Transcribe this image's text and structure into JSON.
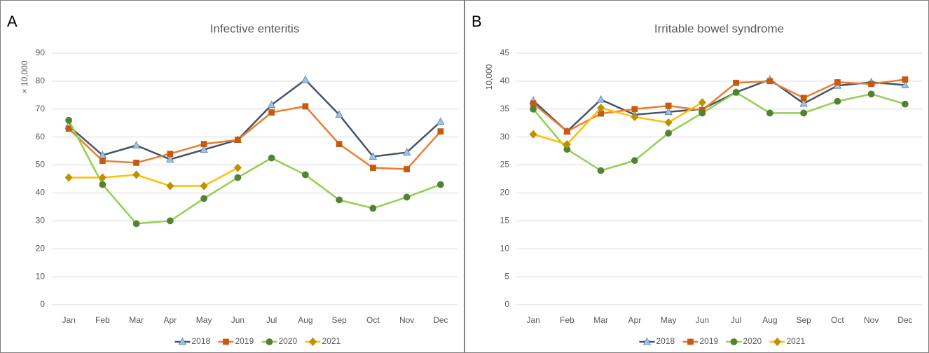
{
  "chart_data": [
    {
      "type": "line",
      "panel": "A",
      "title": "Infective enteritis",
      "y_label": "× 10,000",
      "categories": [
        "Jan",
        "Feb",
        "Mar",
        "Apr",
        "May",
        "Jun",
        "Jul",
        "Aug",
        "Sep",
        "Oct",
        "Nov",
        "Dec"
      ],
      "ylim": [
        0,
        90
      ],
      "yticks": [
        0,
        10,
        20,
        30,
        40,
        50,
        60,
        70,
        80,
        90
      ],
      "grid": true,
      "legend": "bottom",
      "series": [
        {
          "name": "2018",
          "color": "#44546a",
          "marker": "triangle",
          "marker_color": "#9dc3e6",
          "values": [
            64,
            53.5,
            57,
            52,
            55.5,
            59,
            71.5,
            80.5,
            68,
            53,
            54.5,
            65.5
          ]
        },
        {
          "name": "2019",
          "color": "#ed7d31",
          "marker": "square",
          "marker_color": "#c55a11",
          "values": [
            63,
            51.5,
            50.8,
            54,
            57.5,
            59,
            68.8,
            71,
            57.5,
            49,
            48.5,
            62
          ]
        },
        {
          "name": "2020",
          "color": "#92d050",
          "marker": "circle",
          "marker_color": "#548235",
          "values": [
            66,
            43,
            29,
            30,
            38,
            45.5,
            52.5,
            46.5,
            37.5,
            34.5,
            38.5,
            43
          ]
        },
        {
          "name": "2021",
          "color": "#ffc000",
          "marker": "diamond",
          "marker_color": "#bf9000",
          "values": [
            45.5,
            45.5,
            46.5,
            42.5,
            42.5,
            49,
            null,
            null,
            null,
            null,
            null,
            null
          ]
        }
      ]
    },
    {
      "type": "line",
      "panel": "B",
      "title": "Irritable bowel syndrome",
      "y_label": "10,000",
      "categories": [
        "Jan",
        "Feb",
        "Mar",
        "Apr",
        "May",
        "Jun",
        "Jul",
        "Aug",
        "Sep",
        "Oct",
        "Nov",
        "Dec"
      ],
      "ylim": [
        0,
        45
      ],
      "yticks": [
        0,
        5,
        10,
        15,
        20,
        25,
        30,
        35,
        40,
        45
      ],
      "grid": true,
      "legend": "bottom",
      "series": [
        {
          "name": "2018",
          "color": "#44546a",
          "marker": "triangle",
          "marker_color": "#9dc3e6",
          "values": [
            36.5,
            31,
            36.7,
            34,
            34.5,
            35,
            38,
            40.3,
            36,
            39.2,
            39.8,
            39.3
          ]
        },
        {
          "name": "2019",
          "color": "#ed7d31",
          "marker": "square",
          "marker_color": "#c55a11",
          "values": [
            36,
            31,
            34.2,
            35,
            35.6,
            34.8,
            39.7,
            40,
            37,
            39.8,
            39.5,
            40.3
          ]
        },
        {
          "name": "2020",
          "color": "#92d050",
          "marker": "circle",
          "marker_color": "#548235",
          "values": [
            35,
            27.8,
            24,
            25.8,
            30.7,
            34.3,
            38,
            34.3,
            34.3,
            36.4,
            37.7,
            35.9
          ]
        },
        {
          "name": "2021",
          "color": "#ffc000",
          "marker": "diamond",
          "marker_color": "#bf9000",
          "values": [
            30.5,
            28.7,
            35.2,
            33.6,
            32.6,
            36.2,
            null,
            null,
            null,
            null,
            null,
            null
          ]
        }
      ]
    }
  ]
}
